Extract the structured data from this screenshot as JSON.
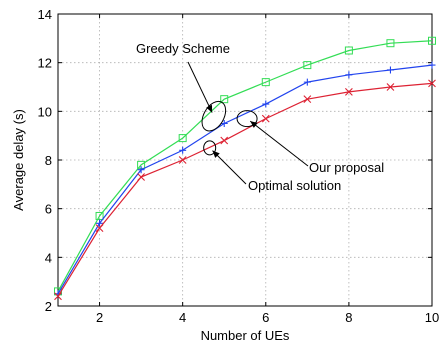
{
  "chart_data": {
    "type": "line",
    "title": "",
    "xlabel": "Number of UEs",
    "ylabel": "Average delay (s)",
    "xlim": [
      1,
      10
    ],
    "ylim": [
      2,
      14
    ],
    "xticks": [
      2,
      4,
      6,
      8,
      10
    ],
    "yticks": [
      2,
      4,
      6,
      8,
      10,
      12,
      14
    ],
    "grid": true,
    "series": [
      {
        "name": "Greedy Scheme",
        "marker": "square",
        "color": "#33dd55",
        "x": [
          1,
          2,
          3,
          4,
          5,
          6,
          7,
          8,
          9,
          10
        ],
        "y": [
          2.6,
          5.7,
          7.8,
          8.9,
          10.5,
          11.2,
          11.9,
          12.5,
          12.8,
          12.9
        ]
      },
      {
        "name": "Our proposal",
        "marker": "plus",
        "color": "#2244ee",
        "x": [
          1,
          2,
          3,
          4,
          5,
          6,
          7,
          8,
          9,
          10
        ],
        "y": [
          2.5,
          5.4,
          7.6,
          8.4,
          9.5,
          10.3,
          11.2,
          11.5,
          11.7,
          11.9
        ]
      },
      {
        "name": "Optimal solution",
        "marker": "x",
        "color": "#dd2233",
        "x": [
          1,
          2,
          3,
          4,
          5,
          6,
          7,
          8,
          9,
          10
        ],
        "y": [
          2.4,
          5.2,
          7.3,
          8.0,
          8.8,
          9.7,
          10.5,
          10.8,
          11.0,
          11.15
        ]
      }
    ],
    "annotations": [
      {
        "text": "Greedy Scheme",
        "series": "Greedy Scheme",
        "target": [
          4.75,
          9.8
        ]
      },
      {
        "text": "Our proposal",
        "series": "Our proposal",
        "target": [
          5.55,
          9.7
        ]
      },
      {
        "text": "Optimal solution",
        "series": "Optimal solution",
        "target": [
          4.65,
          8.5
        ]
      }
    ]
  }
}
